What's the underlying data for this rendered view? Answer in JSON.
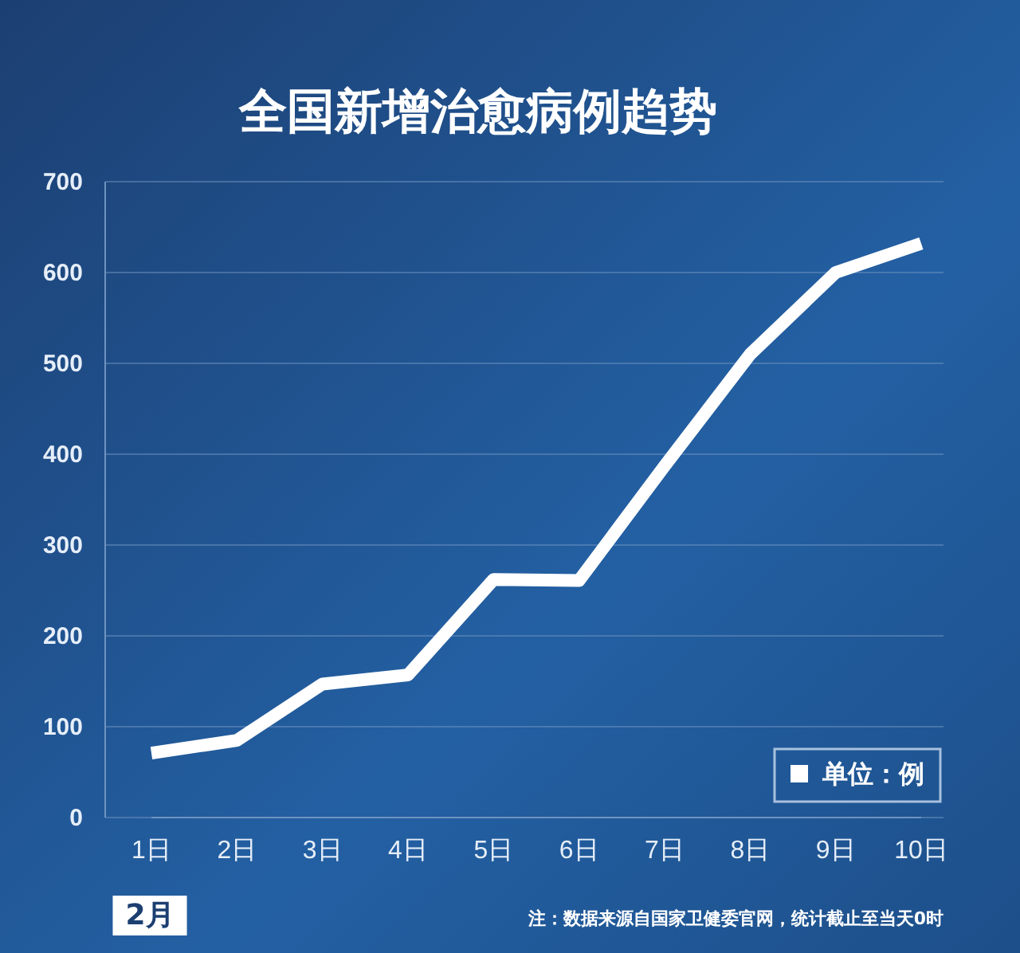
{
  "chart_data": {
    "type": "line",
    "title": "全国新增治愈病例趋势",
    "xlabel": "2月",
    "categories": [
      "1日",
      "2日",
      "3日",
      "4日",
      "5日",
      "6日",
      "7日",
      "8日",
      "9日",
      "10日"
    ],
    "series": [
      {
        "name": "单位：例",
        "color": "#ffffff",
        "values": [
          71,
          85,
          147,
          157,
          262,
          261,
          387,
          510,
          600,
          632
        ]
      }
    ],
    "ylim": [
      0,
      700
    ],
    "yticks": [
      0,
      100,
      200,
      300,
      400,
      500,
      600,
      700
    ],
    "grid": "y",
    "legend": "bottom right",
    "marker": "none",
    "line_style": "solid",
    "annotations": [
      "注：数据来源自国家卫健委官网，统计截止至当天0时"
    ]
  }
}
